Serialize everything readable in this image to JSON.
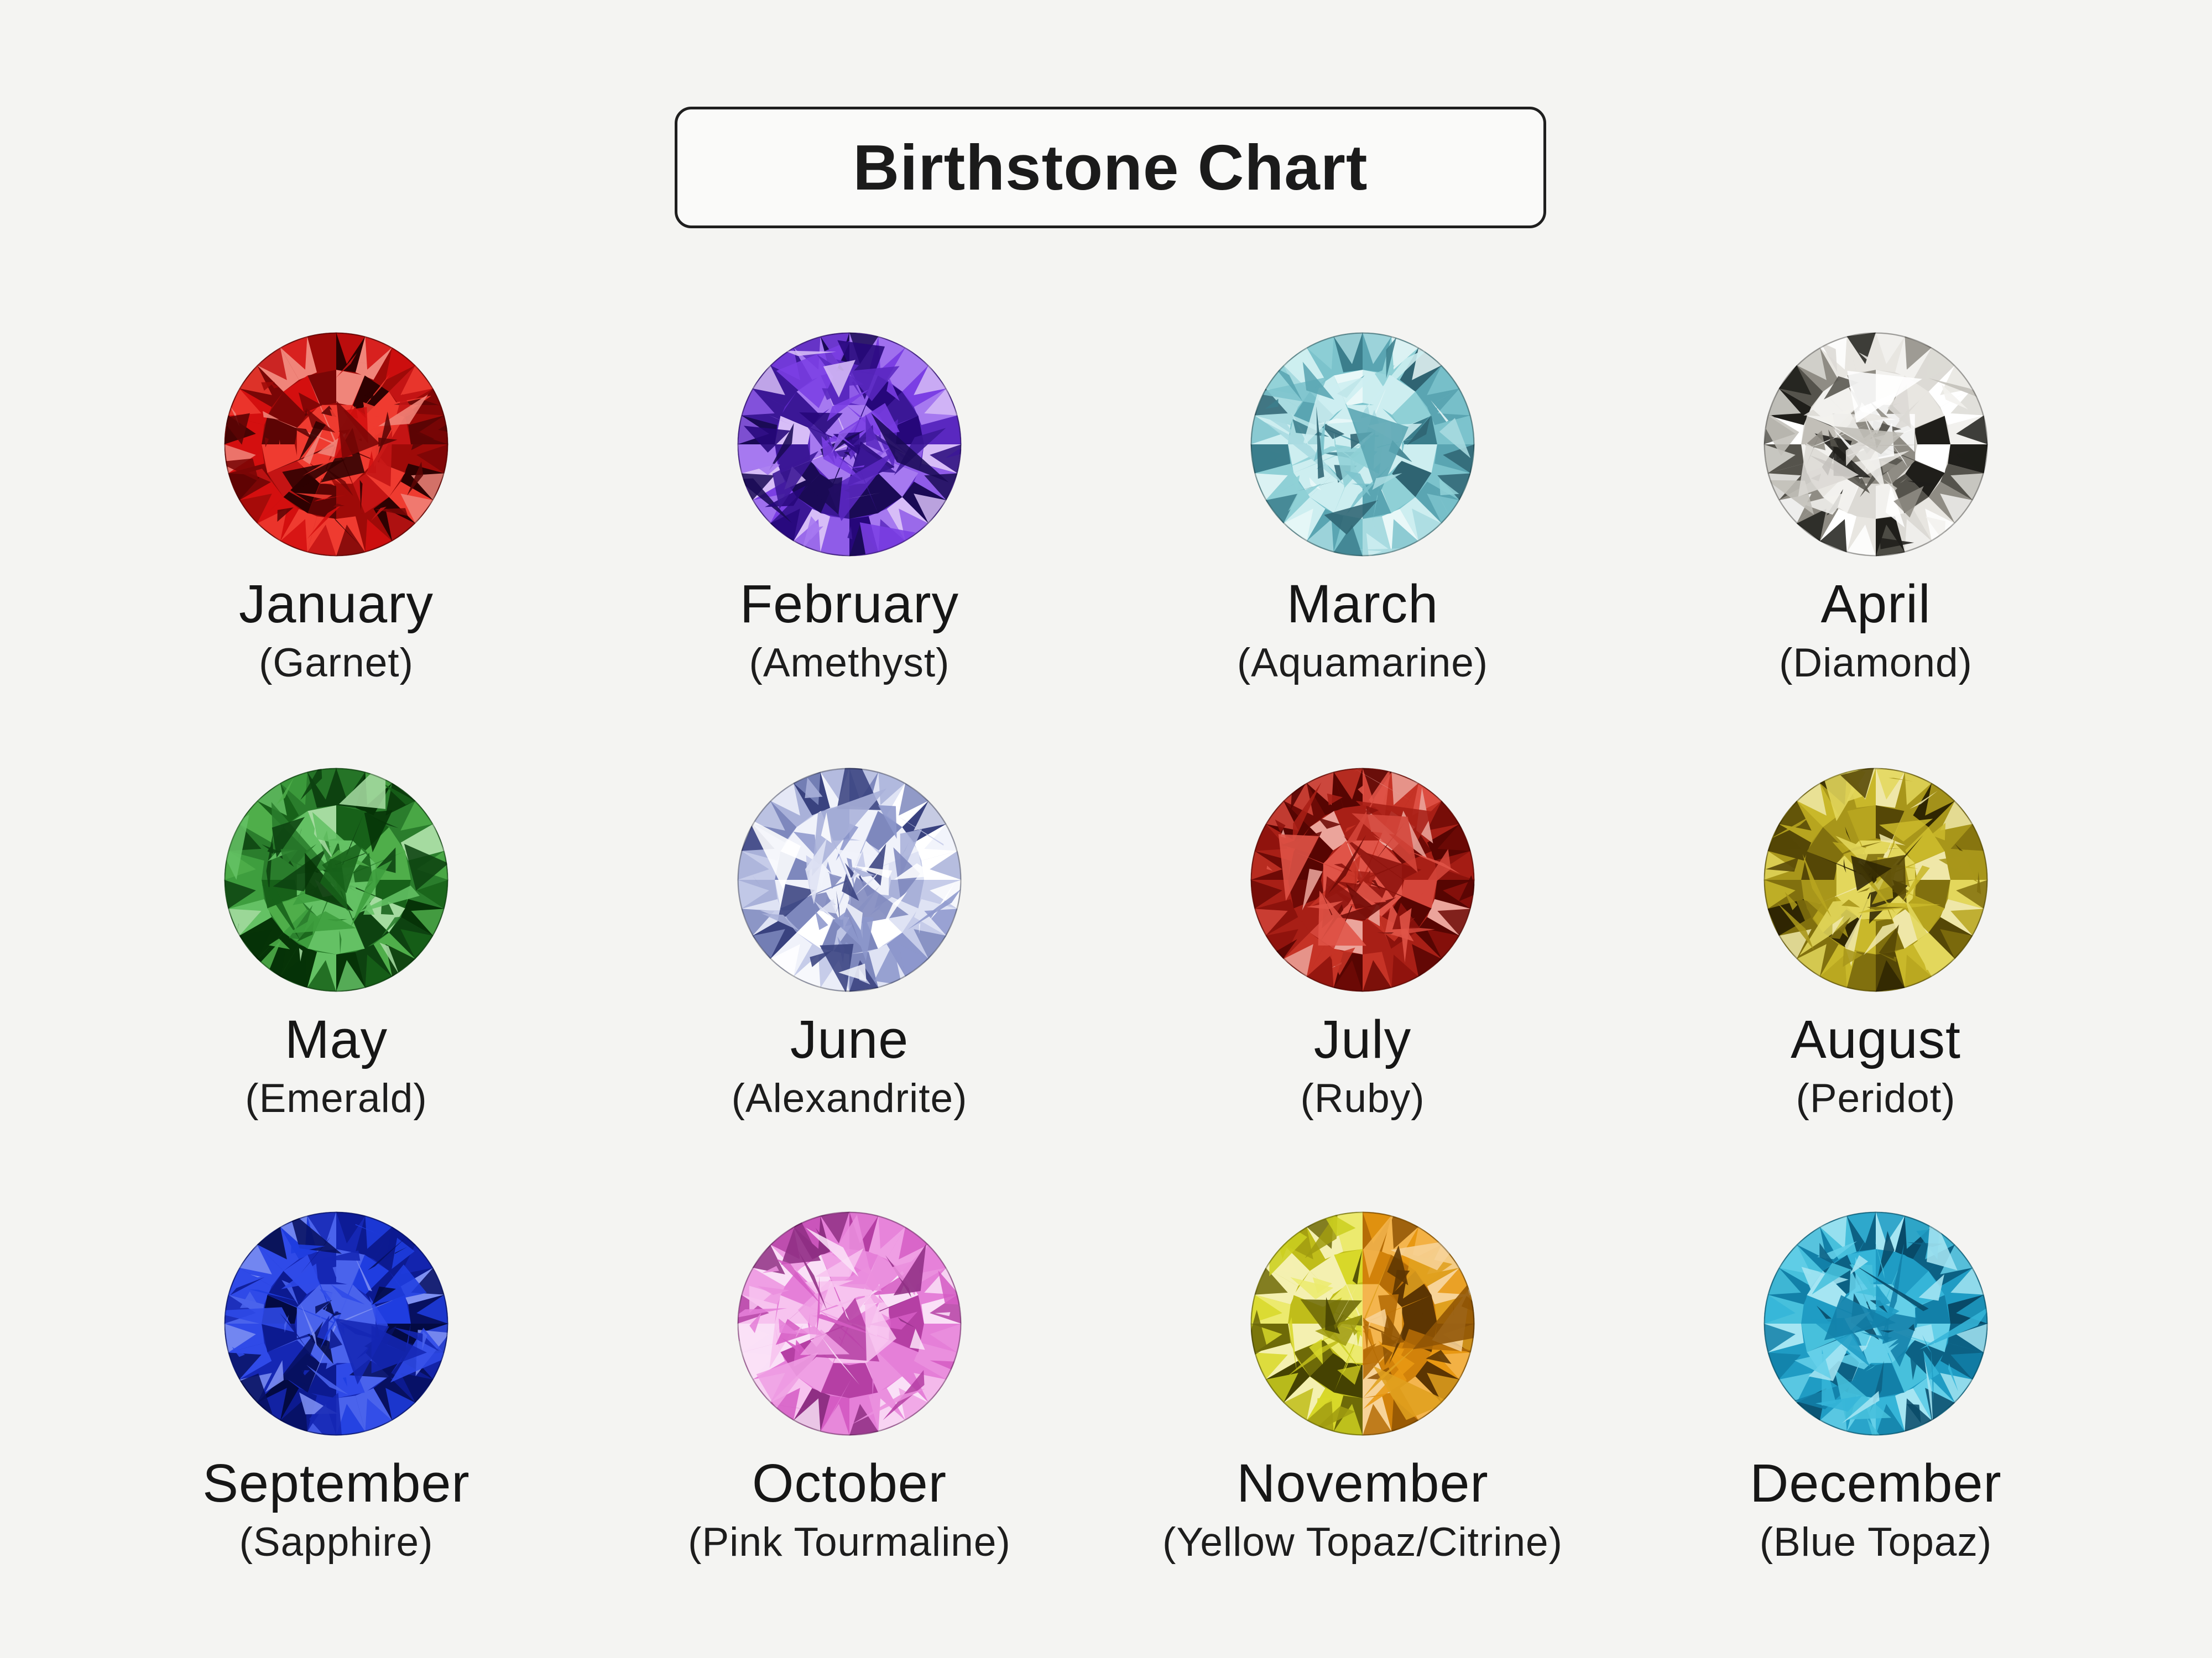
{
  "title": "Birthstone Chart",
  "background_color": "#f4f4f2",
  "title_box": {
    "border_color": "#1f1f1f",
    "fill_color": "#fafaf9"
  },
  "months": [
    {
      "month": "January",
      "stone": "(Garnet)",
      "seed": 101,
      "colors": [
        "#d40f0f",
        "#9e0a08",
        "#5c0404",
        "#ef3b30",
        "#2e0101",
        "#f0857a",
        "#7a0606",
        "#c41414"
      ]
    },
    {
      "month": "February",
      "stone": "(Amethyst)",
      "seed": 102,
      "colors": [
        "#7b3fe4",
        "#5a28c0",
        "#3b1796",
        "#a679f0",
        "#26077a",
        "#d7bdf7",
        "#8f5ce8",
        "#1a0a55"
      ]
    },
    {
      "month": "March",
      "stone": "(Aquamarine)",
      "seed": 103,
      "colors": [
        "#a8dbe0",
        "#7cc3cc",
        "#5aa5b2",
        "#cdeef0",
        "#3b7e8c",
        "#e9f8f8",
        "#8fd0d6",
        "#2f6472"
      ]
    },
    {
      "month": "April",
      "stone": "(Diamond)",
      "seed": 104,
      "colors": [
        "#f2f1ee",
        "#dcdad5",
        "#c2bfb8",
        "#8f8c84",
        "#ffffff",
        "#55534c",
        "#e8e6e1",
        "#1f1e1a"
      ]
    },
    {
      "month": "May",
      "stone": "(Emerald)",
      "seed": 105,
      "colors": [
        "#3e9e3e",
        "#2a7d2c",
        "#176119",
        "#64c164",
        "#0d4210",
        "#a5dba0",
        "#4fae4a",
        "#063307"
      ]
    },
    {
      "month": "June",
      "stone": "(Alexandrite)",
      "seed": 106,
      "colors": [
        "#dfe3f4",
        "#c6cce9",
        "#a9b1d9",
        "#f0f2fa",
        "#7e88bd",
        "#ffffff",
        "#8d97cc",
        "#39427f"
      ]
    },
    {
      "month": "July",
      "stone": "(Ruby)",
      "seed": 107,
      "colors": [
        "#c63326",
        "#a81f16",
        "#8c120c",
        "#e05448",
        "#6e0a06",
        "#eba49b",
        "#d4453a",
        "#570502"
      ]
    },
    {
      "month": "August",
      "stone": "(Peridot)",
      "seed": 108,
      "colors": [
        "#c9b82a",
        "#a8961a",
        "#81700e",
        "#e3d75c",
        "#554706",
        "#efe7a8",
        "#b7a51f",
        "#2f2602"
      ]
    },
    {
      "month": "September",
      "stone": "(Sapphire)",
      "seed": 109,
      "colors": [
        "#1f3de0",
        "#1527b4",
        "#0c1a90",
        "#4a63ec",
        "#071060",
        "#7e90f2",
        "#2f4ae8",
        "#030a42"
      ]
    },
    {
      "month": "October",
      "stone": "(Pink Tourmaline)",
      "seed": 110,
      "colors": [
        "#ef9fe4",
        "#e57fd8",
        "#d55cc4",
        "#f7c3ef",
        "#b53fa4",
        "#fae0f7",
        "#ea8fde",
        "#8f2f84"
      ]
    },
    {
      "month": "November",
      "stone": "(Yellow Topaz/Citrine)",
      "seed": 111,
      "colors": [
        "#d8d829",
        "#c0bd1a",
        "#a19c10",
        "#ecea6e",
        "#6e6a08",
        "#f4f0b0",
        "#cccf20",
        "#454202"
      ],
      "colors_right": [
        "#e89812",
        "#d2820a",
        "#b56c06",
        "#f4b54e",
        "#8f5404",
        "#f7d398",
        "#e0a01f",
        "#5c3502"
      ]
    },
    {
      "month": "December",
      "stone": "(Blue Topaz)",
      "seed": 112,
      "colors": [
        "#35b5d8",
        "#1f9cc4",
        "#1280a8",
        "#64cfe8",
        "#0c6184",
        "#a5e5f2",
        "#47c0dc",
        "#084a68"
      ]
    }
  ]
}
